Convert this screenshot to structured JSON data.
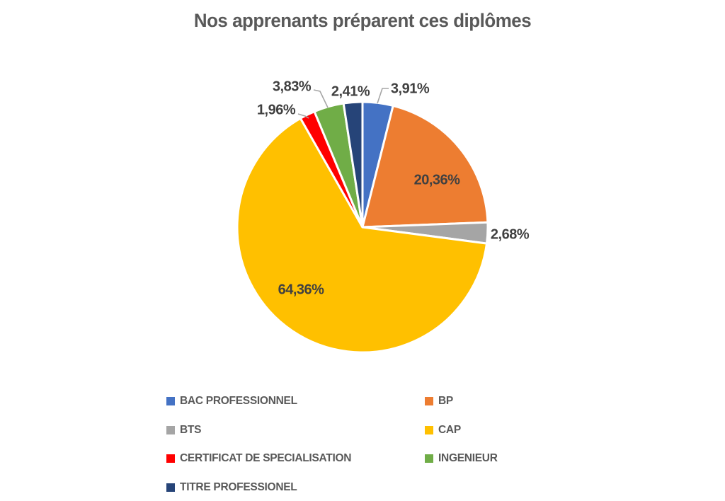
{
  "chart_data": {
    "type": "pie",
    "title": "Nos apprenants préparent ces diplômes",
    "title_color": "#595959",
    "data_label_color": "#404040",
    "leader_line_color": "#A6A6A6",
    "slice_border_color": "#FFFFFF",
    "legend_text_color": "#595959",
    "legend_position": "bottom",
    "legend_columns": 2,
    "direction": "clockwise",
    "start_angle_deg": 0,
    "slices": [
      {
        "name": "BAC PROFESSIONNEL",
        "value_pct": 3.91,
        "label": "3,91%",
        "color": "#4472C4"
      },
      {
        "name": "BP",
        "value_pct": 20.36,
        "label": "20,36%",
        "color": "#ED7D31"
      },
      {
        "name": "BTS",
        "value_pct": 2.68,
        "label": "2,68%",
        "color": "#A5A5A5"
      },
      {
        "name": "CAP",
        "value_pct": 64.36,
        "label": "64,36%",
        "color": "#FFC000"
      },
      {
        "name": "CERTIFICAT DE SPECIALISATION",
        "value_pct": 1.96,
        "label": "1,96%",
        "color": "#FF0000"
      },
      {
        "name": "INGENIEUR",
        "value_pct": 3.83,
        "label": "3,83%",
        "color": "#70AD47"
      },
      {
        "name": "TITRE PROFESSIONEL",
        "value_pct": 2.41,
        "label": "2,41%",
        "color": "#264478"
      }
    ]
  }
}
